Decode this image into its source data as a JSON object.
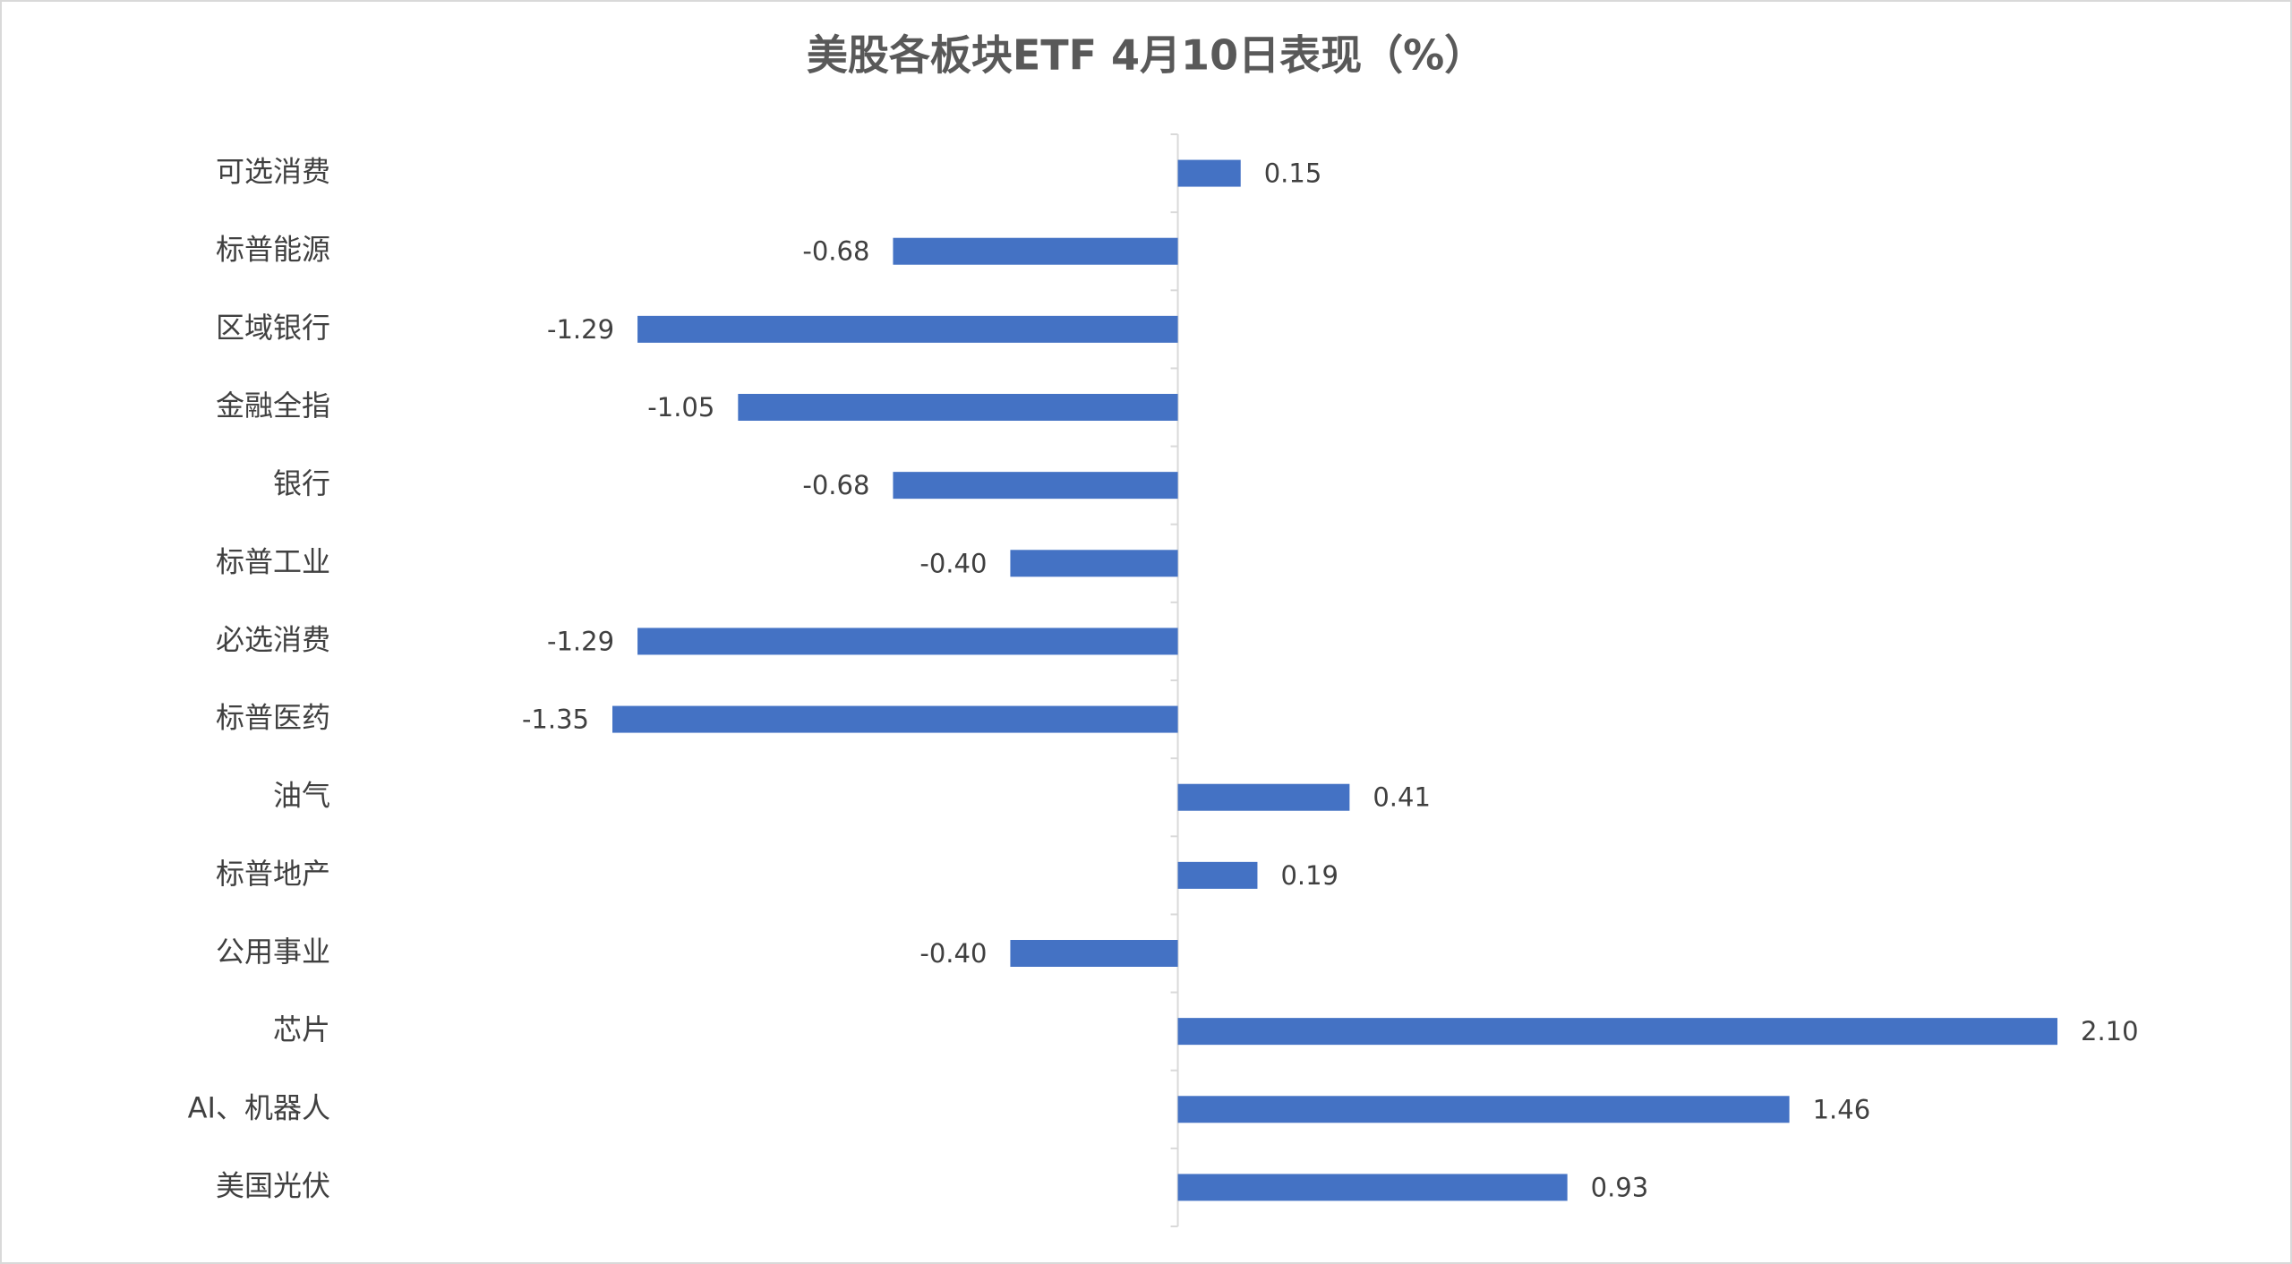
{
  "chart_data": {
    "type": "hbar",
    "title": "美股各板块ETF  4月10日表现（%）",
    "categories": [
      "可选消费",
      "标普能源",
      "区域银行",
      "金融全指",
      "银行",
      "标普工业",
      "必选消费",
      "标普医药",
      "油气",
      "标普地产",
      "公用事业",
      "芯片",
      "AI、机器人",
      "美国光伏"
    ],
    "values": [
      0.15,
      -0.68,
      -1.29,
      -1.05,
      -0.68,
      -0.4,
      -1.29,
      -1.35,
      0.41,
      0.19,
      -0.4,
      2.1,
      1.46,
      0.93
    ],
    "value_labels": [
      "0.15",
      "-0.68",
      "-1.29",
      "-1.05",
      "-0.68",
      "-0.40",
      "-1.29",
      "-1.35",
      "0.41",
      "0.19",
      "-0.40",
      "2.10",
      "1.46",
      "0.93"
    ],
    "color": "#4472c4"
  }
}
